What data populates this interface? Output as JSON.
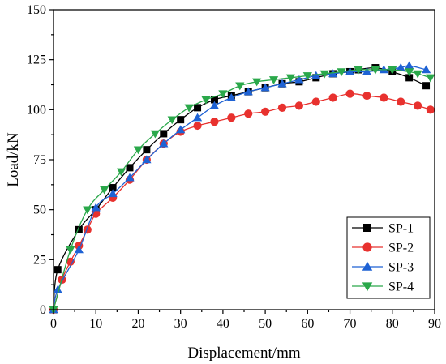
{
  "chart_data": {
    "type": "line",
    "xlabel": "Displacement/mm",
    "ylabel": "Load/kN",
    "xlim": [
      0,
      90
    ],
    "ylim": [
      0,
      150
    ],
    "xticks": [
      "0",
      "10",
      "20",
      "30",
      "40",
      "50",
      "60",
      "70",
      "80",
      "90"
    ],
    "yticks": [
      "0",
      "25",
      "50",
      "75",
      "100",
      "125",
      "150"
    ],
    "grid": false,
    "legend_position": "bottom-right",
    "series": [
      {
        "name": "SP-1",
        "color": "#000000",
        "marker": "square",
        "points": [
          [
            0,
            0
          ],
          [
            1,
            20
          ],
          [
            6,
            40
          ],
          [
            10,
            50
          ],
          [
            14,
            61
          ],
          [
            18,
            71
          ],
          [
            22,
            80
          ],
          [
            26,
            88
          ],
          [
            30,
            95
          ],
          [
            34,
            101
          ],
          [
            38,
            105
          ],
          [
            42,
            107
          ],
          [
            46,
            109
          ],
          [
            50,
            111
          ],
          [
            54,
            113
          ],
          [
            58,
            114
          ],
          [
            62,
            116
          ],
          [
            66,
            118
          ],
          [
            70,
            119
          ],
          [
            72,
            120
          ],
          [
            76,
            121
          ],
          [
            80,
            119
          ],
          [
            84,
            116
          ],
          [
            88,
            112
          ]
        ]
      },
      {
        "name": "SP-2",
        "color": "#e8312e",
        "marker": "circle",
        "points": [
          [
            0,
            0
          ],
          [
            2,
            15
          ],
          [
            4,
            24
          ],
          [
            6,
            32
          ],
          [
            8,
            40
          ],
          [
            10,
            48
          ],
          [
            14,
            56
          ],
          [
            18,
            65
          ],
          [
            22,
            75
          ],
          [
            26,
            83
          ],
          [
            30,
            89
          ],
          [
            34,
            92
          ],
          [
            38,
            94
          ],
          [
            42,
            96
          ],
          [
            46,
            98
          ],
          [
            50,
            99
          ],
          [
            54,
            101
          ],
          [
            58,
            102
          ],
          [
            62,
            104
          ],
          [
            66,
            106
          ],
          [
            70,
            108
          ],
          [
            74,
            107
          ],
          [
            78,
            106
          ],
          [
            82,
            104
          ],
          [
            86,
            102
          ],
          [
            89,
            100
          ]
        ]
      },
      {
        "name": "SP-3",
        "color": "#1e62d4",
        "marker": "triangle-up",
        "points": [
          [
            0,
            0
          ],
          [
            1,
            10
          ],
          [
            6,
            30
          ],
          [
            10,
            51
          ],
          [
            14,
            58
          ],
          [
            18,
            66
          ],
          [
            22,
            75
          ],
          [
            26,
            83
          ],
          [
            30,
            90
          ],
          [
            34,
            96
          ],
          [
            38,
            102
          ],
          [
            42,
            106
          ],
          [
            46,
            109
          ],
          [
            50,
            111
          ],
          [
            54,
            113
          ],
          [
            58,
            115
          ],
          [
            62,
            117
          ],
          [
            66,
            118
          ],
          [
            70,
            119
          ],
          [
            74,
            119
          ],
          [
            78,
            120
          ],
          [
            82,
            121
          ],
          [
            84,
            122
          ],
          [
            88,
            120
          ]
        ]
      },
      {
        "name": "SP-4",
        "color": "#2aa84a",
        "marker": "triangle-down",
        "points": [
          [
            0,
            0
          ],
          [
            4,
            30
          ],
          [
            8,
            50
          ],
          [
            12,
            60
          ],
          [
            16,
            69
          ],
          [
            20,
            80
          ],
          [
            24,
            88
          ],
          [
            28,
            95
          ],
          [
            32,
            101
          ],
          [
            36,
            105
          ],
          [
            40,
            108
          ],
          [
            44,
            112
          ],
          [
            48,
            114
          ],
          [
            52,
            115
          ],
          [
            56,
            116
          ],
          [
            60,
            117
          ],
          [
            64,
            118
          ],
          [
            68,
            119
          ],
          [
            72,
            120
          ],
          [
            76,
            120
          ],
          [
            80,
            120
          ],
          [
            84,
            119
          ],
          [
            86,
            118
          ],
          [
            89,
            116
          ]
        ]
      }
    ]
  }
}
